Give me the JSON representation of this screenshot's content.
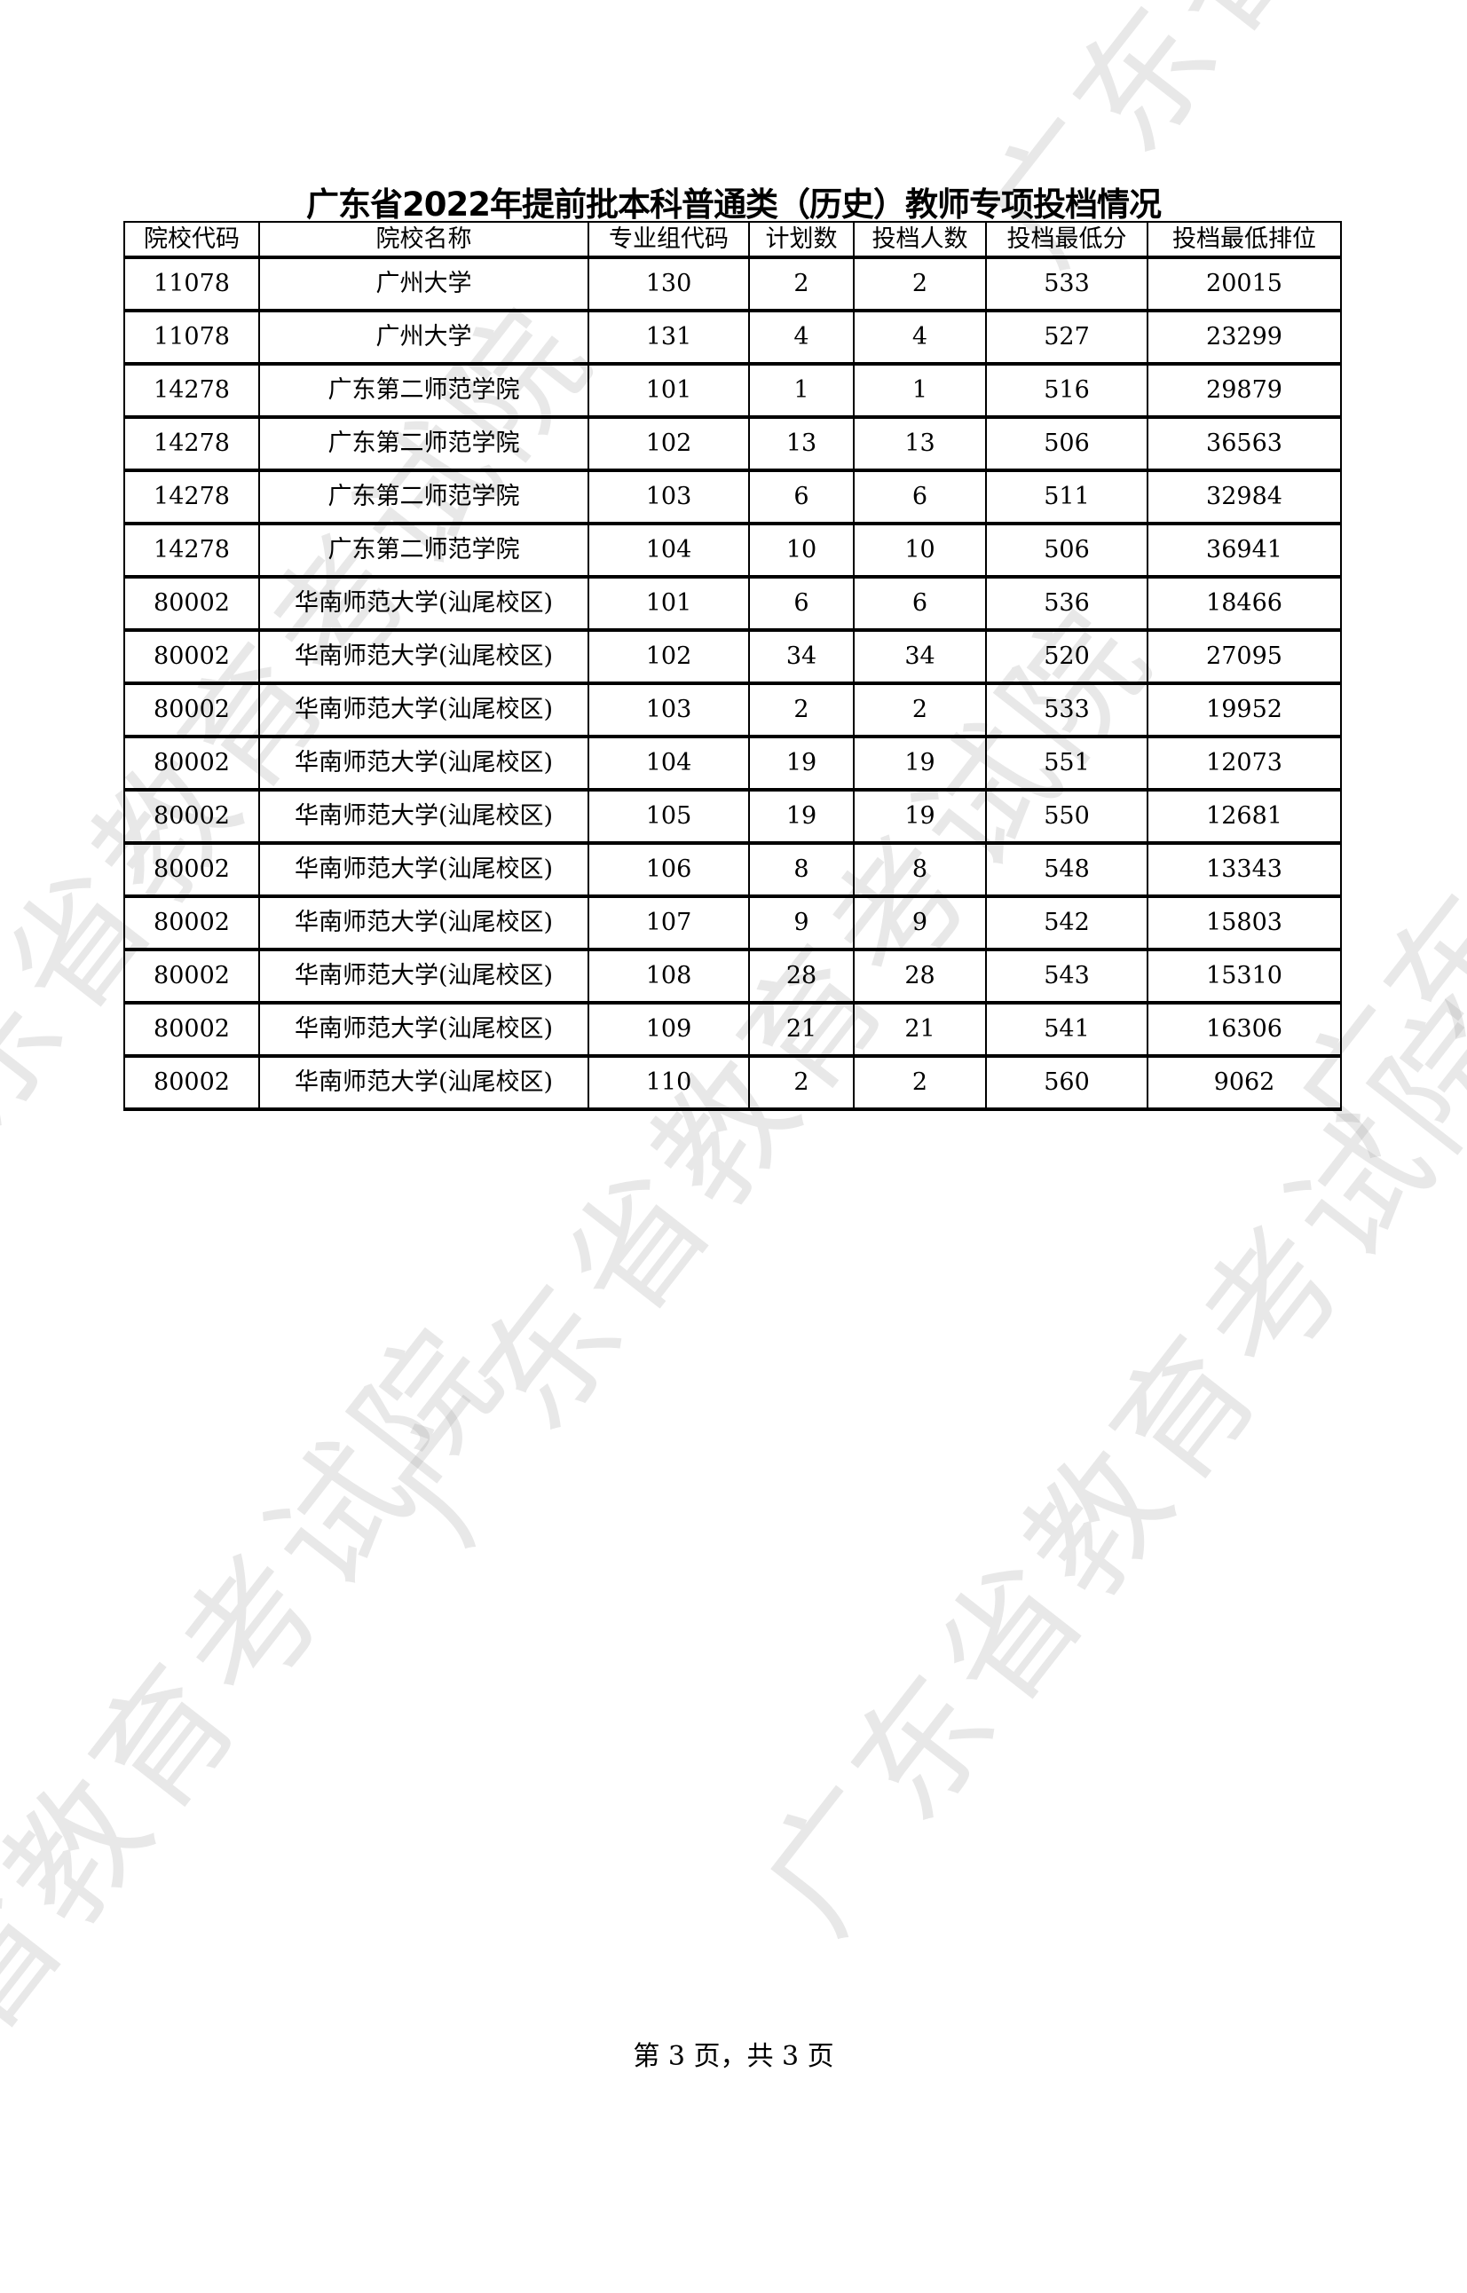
{
  "title": "广东省2022年提前批本科普通类（历史）教师专项投档情况",
  "watermark": "广东省教育考试院",
  "table": {
    "headers": [
      "院校代码",
      "院校名称",
      "专业组代码",
      "计划数",
      "投档人数",
      "投档最低分",
      "投档最低排位"
    ],
    "rows": [
      [
        "11078",
        "广州大学",
        "130",
        "2",
        "2",
        "533",
        "20015"
      ],
      [
        "11078",
        "广州大学",
        "131",
        "4",
        "4",
        "527",
        "23299"
      ],
      [
        "14278",
        "广东第二师范学院",
        "101",
        "1",
        "1",
        "516",
        "29879"
      ],
      [
        "14278",
        "广东第二师范学院",
        "102",
        "13",
        "13",
        "506",
        "36563"
      ],
      [
        "14278",
        "广东第二师范学院",
        "103",
        "6",
        "6",
        "511",
        "32984"
      ],
      [
        "14278",
        "广东第二师范学院",
        "104",
        "10",
        "10",
        "506",
        "36941"
      ],
      [
        "80002",
        "华南师范大学(汕尾校区)",
        "101",
        "6",
        "6",
        "536",
        "18466"
      ],
      [
        "80002",
        "华南师范大学(汕尾校区)",
        "102",
        "34",
        "34",
        "520",
        "27095"
      ],
      [
        "80002",
        "华南师范大学(汕尾校区)",
        "103",
        "2",
        "2",
        "533",
        "19952"
      ],
      [
        "80002",
        "华南师范大学(汕尾校区)",
        "104",
        "19",
        "19",
        "551",
        "12073"
      ],
      [
        "80002",
        "华南师范大学(汕尾校区)",
        "105",
        "19",
        "19",
        "550",
        "12681"
      ],
      [
        "80002",
        "华南师范大学(汕尾校区)",
        "106",
        "8",
        "8",
        "548",
        "13343"
      ],
      [
        "80002",
        "华南师范大学(汕尾校区)",
        "107",
        "9",
        "9",
        "542",
        "15803"
      ],
      [
        "80002",
        "华南师范大学(汕尾校区)",
        "108",
        "28",
        "28",
        "543",
        "15310"
      ],
      [
        "80002",
        "华南师范大学(汕尾校区)",
        "109",
        "21",
        "21",
        "541",
        "16306"
      ],
      [
        "80002",
        "华南师范大学(汕尾校区)",
        "110",
        "2",
        "2",
        "560",
        "9062"
      ]
    ]
  },
  "footer": "第 3 页，共 3 页"
}
